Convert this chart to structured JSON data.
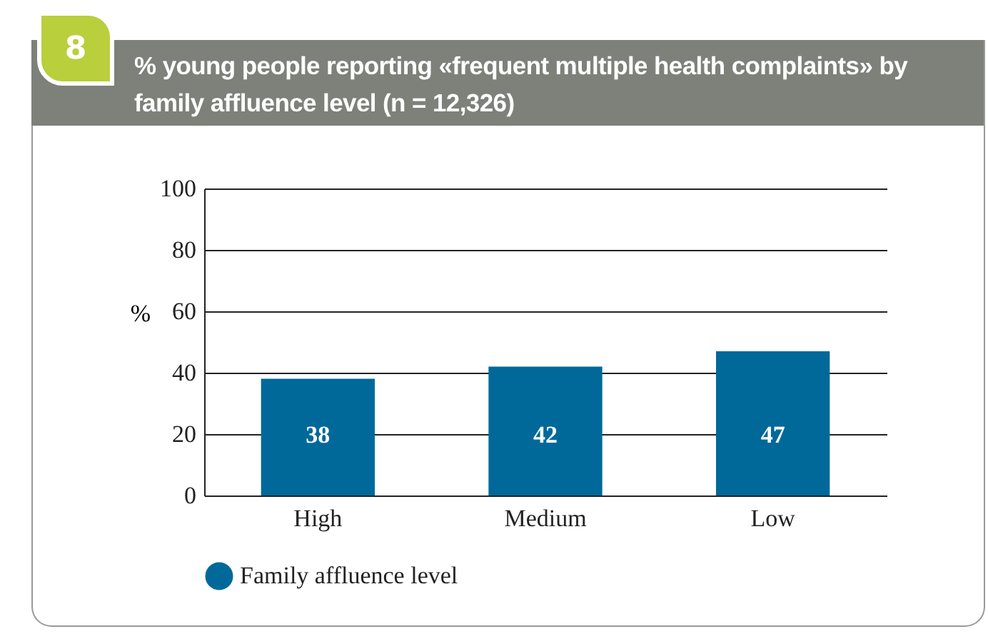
{
  "chart_data": {
    "type": "bar",
    "title": "% young people reporting «frequent multiple health complaints» by family affluence level (n = 12,326)",
    "annotations": [
      "8"
    ],
    "ylabel": "%",
    "categories": [
      "High",
      "Medium",
      "Low"
    ],
    "series": [
      {
        "name": "Family affluence level",
        "color": "#00699a",
        "values": [
          38,
          42,
          47
        ]
      }
    ],
    "ylim": [
      0,
      100
    ],
    "yticks": [
      0,
      20,
      40,
      60,
      80,
      100
    ],
    "grid": "y",
    "legend": "bottom",
    "data_labels": true
  }
}
